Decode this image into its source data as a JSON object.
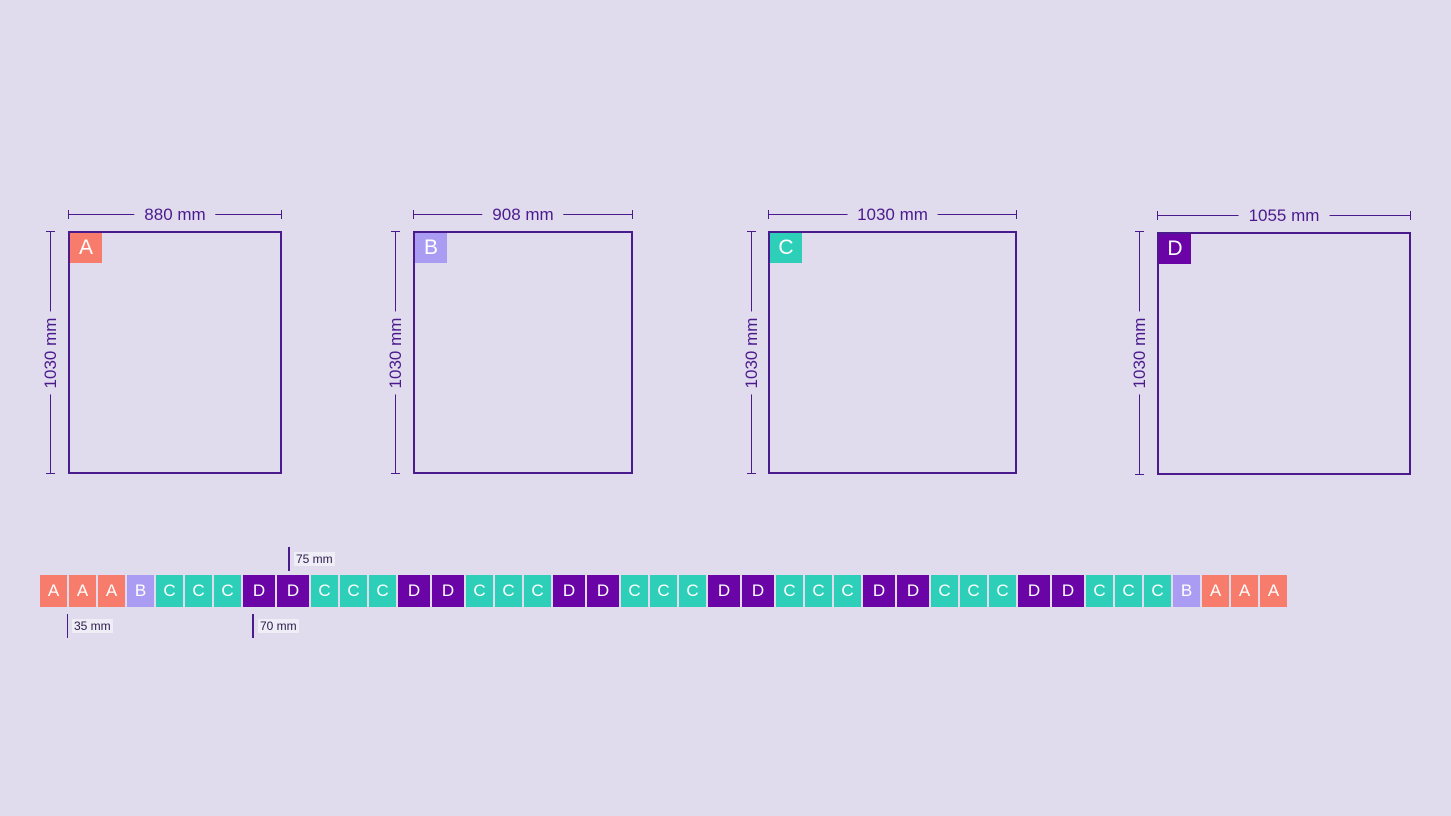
{
  "colors": {
    "background": "#e0dcee",
    "outline": "#4b1a8c",
    "A": "#f87c6c",
    "B": "#a99cf2",
    "C": "#2dcfb9",
    "D": "#6a04a6"
  },
  "panels": [
    {
      "letter": "A",
      "width_label": "880 mm",
      "height_label": "1030 mm"
    },
    {
      "letter": "B",
      "width_label": "908 mm",
      "height_label": "1030 mm"
    },
    {
      "letter": "C",
      "width_label": "1030 mm",
      "height_label": "1030 mm"
    },
    {
      "letter": "D",
      "width_label": "1055 mm",
      "height_label": "1030 mm"
    }
  ],
  "strip": [
    "A",
    "A",
    "A",
    "B",
    "C",
    "C",
    "C",
    "D",
    "D",
    "C",
    "C",
    "C",
    "D",
    "D",
    "C",
    "C",
    "C",
    "D",
    "D",
    "C",
    "C",
    "C",
    "D",
    "D",
    "C",
    "C",
    "C",
    "D",
    "D",
    "C",
    "C",
    "C",
    "D",
    "D",
    "C",
    "C",
    "C",
    "B",
    "A",
    "A",
    "A"
  ],
  "callouts": {
    "small_gap": "35 mm",
    "mid_gap": "70 mm",
    "large_gap": "75 mm"
  }
}
